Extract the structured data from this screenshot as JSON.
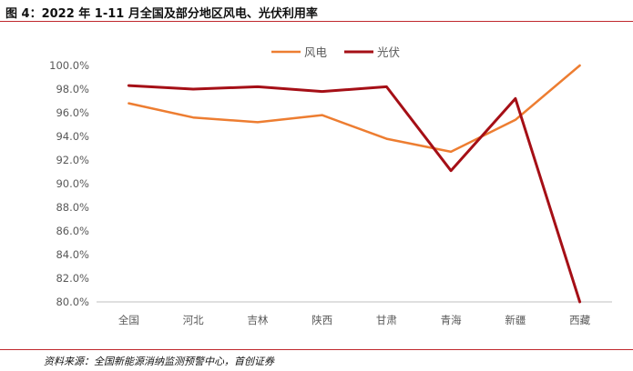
{
  "figure_title": "图 4：2022 年 1-11 月全国及部分地区风电、光伏利用率",
  "source": "资料来源：全国新能源消纳监测预警中心，首创证券",
  "chart_data": {
    "type": "line",
    "categories": [
      "全国",
      "河北",
      "吉林",
      "陕西",
      "甘肃",
      "青海",
      "新疆",
      "西藏"
    ],
    "series": [
      {
        "name": "风电",
        "color": "#ED7D31",
        "values": [
          96.8,
          95.6,
          95.2,
          95.8,
          93.8,
          92.7,
          95.4,
          100.0
        ]
      },
      {
        "name": "光伏",
        "color": "#A50F16",
        "values": [
          98.3,
          98.0,
          98.2,
          97.8,
          98.2,
          91.1,
          97.2,
          80.0
        ]
      }
    ],
    "ylim": [
      80,
      100
    ],
    "yticks": [
      "80.0%",
      "82.0%",
      "84.0%",
      "86.0%",
      "88.0%",
      "90.0%",
      "92.0%",
      "94.0%",
      "96.0%",
      "98.0%",
      "100.0%"
    ],
    "grid": false,
    "legend_position": "top-center"
  }
}
